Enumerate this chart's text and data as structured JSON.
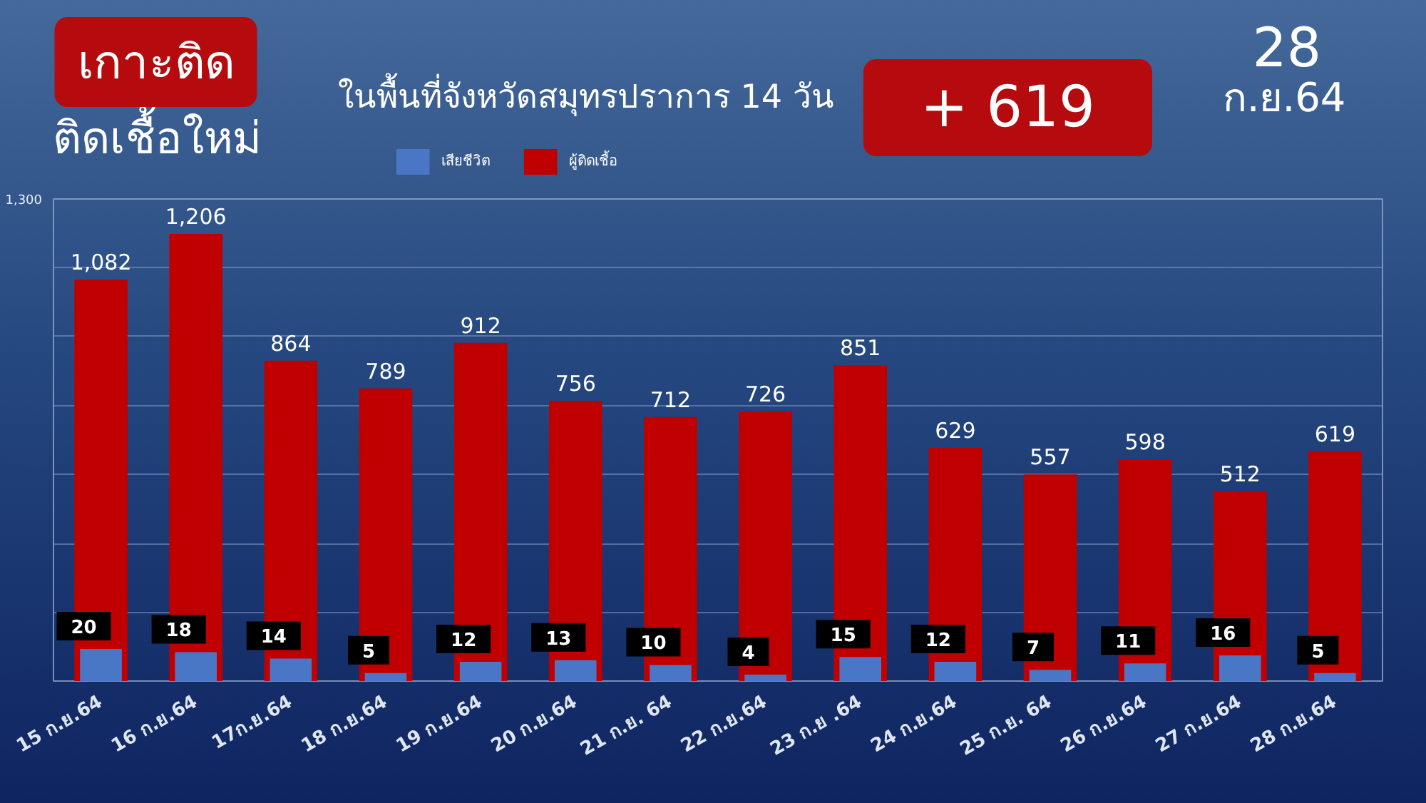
{
  "chart_data": {
    "type": "bar",
    "title": "ติดเชื้อใหม่",
    "subtitle": "ในพื้นที่จังหวัดสมุทรปราการ 14 วัน",
    "annotations": [
      "เกาะติด",
      "+ 619",
      "28",
      "ก.ย.64"
    ],
    "categories": [
      "15 ก.ย.64",
      "16 ก.ย.64",
      "17ก.ย.64",
      "18 ก.ย.64",
      "19 ก.ย.64",
      "20 ก.ย.64",
      "21 ก.ย. 64",
      "22 ก.ย.64",
      "23 ก.ย .64",
      "24 ก.ย.64",
      "25 ก.ย. 64",
      "26 ก.ย.64",
      "27 ก.ย.64",
      "28 ก.ย.64"
    ],
    "series": [
      {
        "name": "เสียชีวิต",
        "color": "#4a76c6",
        "axis": "y2",
        "values": [
          20,
          18,
          14,
          5,
          12,
          13,
          10,
          4,
          15,
          12,
          7,
          11,
          16,
          5
        ]
      },
      {
        "name": "ผู้ติดเชื้อ",
        "color": "#c00000",
        "values": [
          1082,
          1206,
          864,
          789,
          912,
          756,
          712,
          726,
          851,
          629,
          557,
          598,
          512,
          619
        ],
        "value_labels": [
          "1,082",
          "1,206",
          "864",
          "789",
          "912",
          "756",
          "712",
          "726",
          "851",
          "629",
          "557",
          "598",
          "512",
          "619"
        ]
      }
    ],
    "ylim": [
      0,
      1300
    ],
    "yticks": [
      {
        "value": 186,
        "label": null
      },
      {
        "value": 371,
        "label": null
      },
      {
        "value": 557,
        "label": null
      },
      {
        "value": 743,
        "label": null
      },
      {
        "value": 929,
        "label": null
      },
      {
        "value": 1114,
        "label": null
      },
      {
        "value": 1300,
        "label": "1,300"
      }
    ],
    "y2lim": [
      0,
      300
    ],
    "grid": "y",
    "legend": "top",
    "data_labels": true
  }
}
